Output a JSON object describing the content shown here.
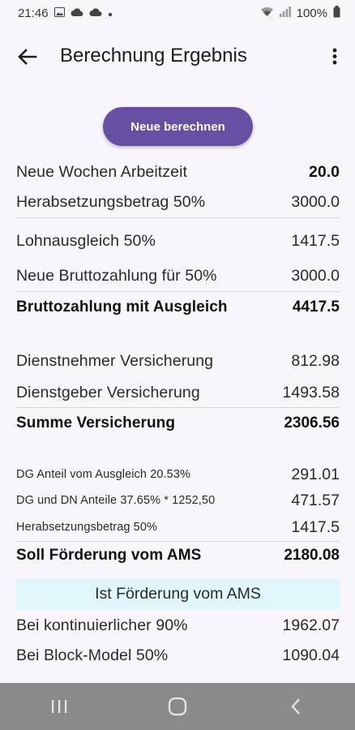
{
  "status": {
    "time": "21:46",
    "battery": "100%"
  },
  "header": {
    "title": "Berechnung Ergebnis"
  },
  "actions": {
    "recalc_label": "Neue berechnen"
  },
  "rows": [
    {
      "label": "Neue Wochen Arbeitzeit",
      "value": "20.0"
    },
    {
      "label": "Herabsetzungsbetrag 50%",
      "value": "3000.0"
    },
    {
      "label": "Lohnausgleich 50%",
      "value": "1417.5"
    },
    {
      "label": "Neue Bruttozahlung für 50%",
      "value": "3000.0"
    },
    {
      "label": "Bruttozahlung mit Ausgleich",
      "value": "4417.5"
    },
    {
      "label": "Dienstnehmer Versicherung",
      "value": "812.98"
    },
    {
      "label": "Dienstgeber Versicherung",
      "value": "1493.58"
    },
    {
      "label": "Summe Versicherung",
      "value": "2306.56"
    },
    {
      "label": "DG Anteil vom Ausgleich 20.53%",
      "value": "291.01"
    },
    {
      "label": "DG und DN Anteile 37.65% * 1252,50",
      "value": "471.57"
    },
    {
      "label": "Herabsetzungsbetrag 50%",
      "value": "1417.5"
    },
    {
      "label": "Soll Förderung vom AMS",
      "value": "2180.08"
    },
    {
      "label": "Bei kontinuierlicher 90%",
      "value": "1962.07"
    },
    {
      "label": "Bei Block-Model 50%",
      "value": "1090.04"
    }
  ],
  "section": {
    "ist_label": "Ist Förderung vom AMS"
  }
}
